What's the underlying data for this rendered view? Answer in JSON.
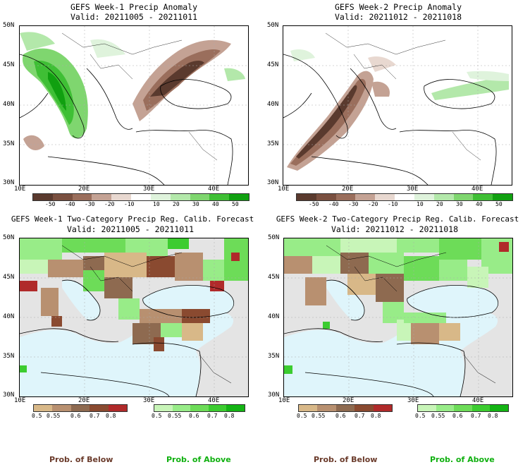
{
  "panels": [
    {
      "title": "GEFS Week-1 Precip Anomaly",
      "valid": "Valid: 20211005 - 20211011",
      "lat_labels": [
        "50N",
        "45N",
        "40N",
        "35N",
        "30N"
      ],
      "lon_labels": [
        "10E",
        "20E",
        "30E",
        "40E"
      ],
      "colorbar_labels": [
        "-50",
        "-40",
        "-30",
        "-20",
        "-10",
        "10",
        "20",
        "30",
        "40",
        "50"
      ]
    },
    {
      "title": "GEFS Week-2 Precip Anomaly",
      "valid": "Valid: 20211012 - 20211018",
      "lat_labels": [
        "50N",
        "45N",
        "40N",
        "35N",
        "30N"
      ],
      "lon_labels": [
        "10E",
        "20E",
        "30E",
        "40E"
      ],
      "colorbar_labels": [
        "-50",
        "-40",
        "-30",
        "-20",
        "-10",
        "10",
        "20",
        "30",
        "40",
        "50"
      ]
    },
    {
      "title": "GEFS Week-1 Two-Category Precip Reg. Calib. Forecast",
      "valid": "Valid: 20211005 - 20211011",
      "lat_labels": [
        "50N",
        "45N",
        "40N",
        "35N",
        "30N"
      ],
      "lon_labels": [
        "10E",
        "20E",
        "30E",
        "40E"
      ],
      "below_labels": [
        "0.5",
        "0.55",
        "0.6",
        "0.7",
        "0.8"
      ],
      "above_labels": [
        "0.5",
        "0.55",
        "0.6",
        "0.7",
        "0.8"
      ]
    },
    {
      "title": "GEFS Week-2 Two-Category Precip Reg. Calib. Forecast",
      "valid": "Valid: 20211012 - 20211018",
      "lat_labels": [
        "50N",
        "45N",
        "40N",
        "35N",
        "30N"
      ],
      "lon_labels": [
        "10E",
        "20E",
        "30E",
        "40E"
      ],
      "below_labels": [
        "0.5",
        "0.55",
        "0.6",
        "0.7",
        "0.8"
      ],
      "above_labels": [
        "0.5",
        "0.55",
        "0.6",
        "0.7",
        "0.8"
      ]
    }
  ],
  "footer": {
    "left_below": "Prob. of Below",
    "left_above": "Prob. of Above",
    "right_below": "Prob. of Below",
    "right_above": "Prob. of Above"
  },
  "colors": {
    "anom_dry": [
      "#5a3a2e",
      "#7a5040",
      "#9a6e5c",
      "#c4a294",
      "#e8d8d0"
    ],
    "anom_wet": [
      "#dff3dc",
      "#b3e8aa",
      "#7fd66f",
      "#3fbf35",
      "#10a010"
    ],
    "prob_below": [
      "#d8b888",
      "#b89070",
      "#8e6a50",
      "#8a4a30",
      "#b02a2a"
    ],
    "prob_above": [
      "#c8f5b8",
      "#98ec88",
      "#6ddc58",
      "#3ccc30",
      "#14b414"
    ],
    "sea": "#dff5fb",
    "nodata": "#e4e4e4",
    "below_text": "#6a3a2a",
    "above_text": "#10b010"
  }
}
